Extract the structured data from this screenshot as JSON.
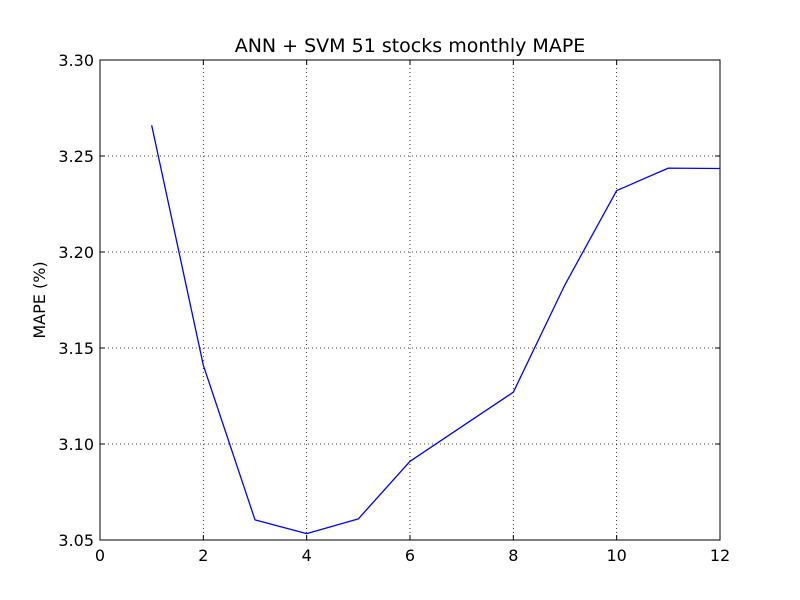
{
  "chart_data": {
    "type": "line",
    "title": "ANN + SVM 51 stocks monthly MAPE",
    "xlabel": "",
    "ylabel": "MAPE (%)",
    "xlim": [
      0,
      12
    ],
    "ylim": [
      3.05,
      3.3
    ],
    "xticks": [
      "0",
      "2",
      "4",
      "6",
      "8",
      "10",
      "12"
    ],
    "yticks": [
      "3.05",
      "3.10",
      "3.15",
      "3.20",
      "3.25",
      "3.30"
    ],
    "grid": true,
    "series": [
      {
        "color": "#0000ff",
        "x": [
          1,
          2,
          3,
          4,
          5,
          6,
          7,
          8,
          9,
          10,
          11,
          12
        ],
        "y": [
          3.266,
          3.141,
          3.0605,
          3.0533,
          3.061,
          3.091,
          3.109,
          3.127,
          3.183,
          3.232,
          3.2437,
          3.2435
        ]
      }
    ]
  }
}
